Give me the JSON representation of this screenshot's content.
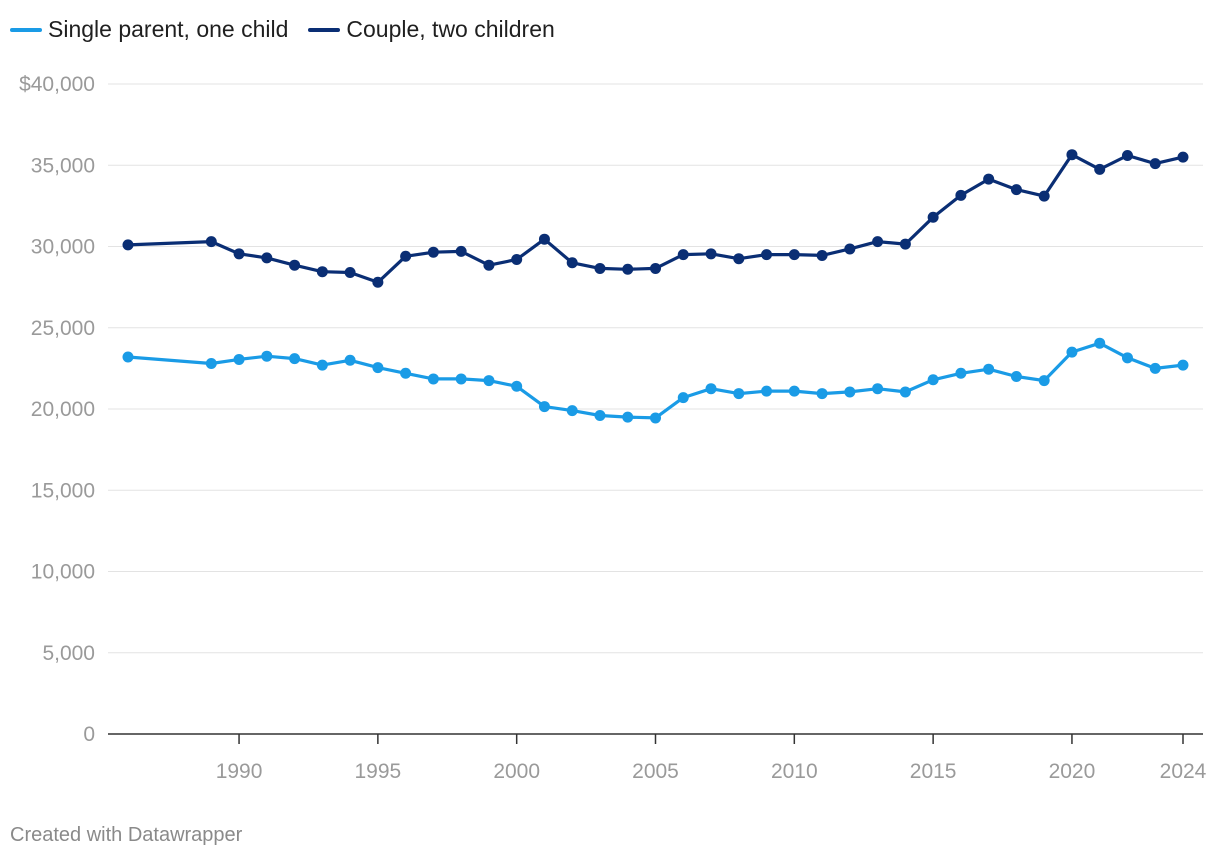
{
  "chart_data": {
    "type": "line",
    "title": "",
    "xlabel": "",
    "ylabel": "",
    "xlim": [
      1986,
      2024
    ],
    "ylim": [
      0,
      40000
    ],
    "y_ticks": [
      0,
      5000,
      10000,
      15000,
      20000,
      25000,
      30000,
      35000,
      40000
    ],
    "y_tick_labels": [
      "0",
      "5,000",
      "10,000",
      "15,000",
      "20,000",
      "25,000",
      "30,000",
      "35,000",
      "$40,000"
    ],
    "x_ticks": [
      1990,
      1995,
      2000,
      2005,
      2010,
      2015,
      2020,
      2024
    ],
    "x_tick_labels": [
      "1990",
      "1995",
      "2000",
      "2005",
      "2010",
      "2015",
      "2020",
      "2024"
    ],
    "grid": true,
    "legend_position": "top-left",
    "series": [
      {
        "name": "Single parent, one child",
        "color": "#1a9be6",
        "x": [
          1986,
          1989,
          1990,
          1991,
          1992,
          1993,
          1994,
          1995,
          1996,
          1997,
          1998,
          1999,
          2000,
          2001,
          2002,
          2003,
          2004,
          2005,
          2006,
          2007,
          2008,
          2009,
          2010,
          2011,
          2012,
          2013,
          2014,
          2015,
          2016,
          2017,
          2018,
          2019,
          2020,
          2021,
          2022,
          2023,
          2024
        ],
        "values": [
          23200,
          22800,
          23050,
          23250,
          23100,
          22700,
          23000,
          22550,
          22200,
          21850,
          21850,
          21750,
          21400,
          20150,
          19900,
          19600,
          19500,
          19450,
          20700,
          21250,
          20950,
          21100,
          21100,
          20950,
          21050,
          21250,
          21050,
          21800,
          22200,
          22450,
          22000,
          21750,
          23500,
          24050,
          23150,
          22500,
          22700
        ]
      },
      {
        "name": "Couple, two children",
        "color": "#0a2e74",
        "x": [
          1986,
          1989,
          1990,
          1991,
          1992,
          1993,
          1994,
          1995,
          1996,
          1997,
          1998,
          1999,
          2000,
          2001,
          2002,
          2003,
          2004,
          2005,
          2006,
          2007,
          2008,
          2009,
          2010,
          2011,
          2012,
          2013,
          2014,
          2015,
          2016,
          2017,
          2018,
          2019,
          2020,
          2021,
          2022,
          2023,
          2024
        ],
        "values": [
          30100,
          30300,
          29550,
          29300,
          28850,
          28450,
          28400,
          27800,
          29400,
          29650,
          29700,
          28850,
          29200,
          30450,
          29000,
          28650,
          28600,
          28650,
          29500,
          29550,
          29250,
          29500,
          29500,
          29450,
          29850,
          30300,
          30150,
          31800,
          33150,
          34150,
          33500,
          33100,
          35650,
          34750,
          35600,
          35100,
          35500
        ]
      }
    ]
  },
  "footer": {
    "credit": "Created with Datawrapper"
  }
}
